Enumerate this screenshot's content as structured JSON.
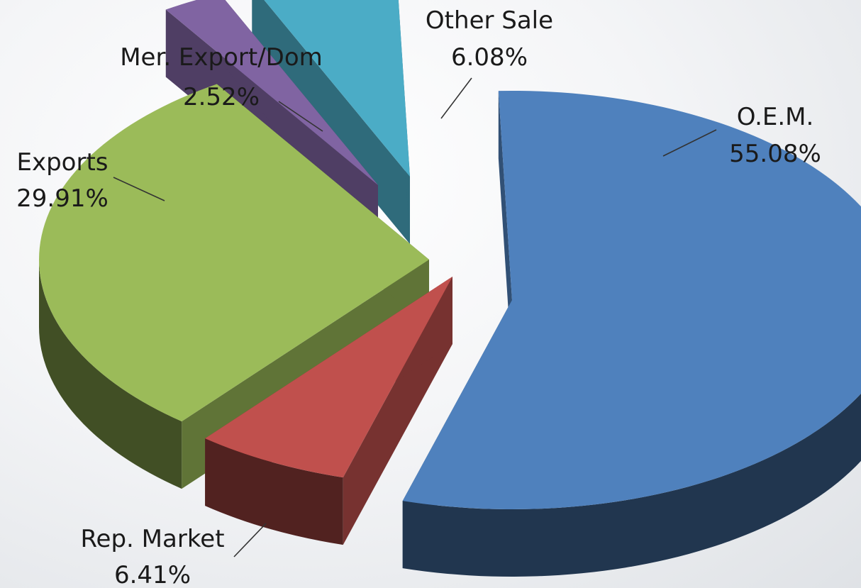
{
  "chart_data": {
    "type": "pie",
    "title": "",
    "three_d": true,
    "exploded": true,
    "slices": [
      {
        "name": "O.E.M.",
        "value": 55.08,
        "label": "55.08%",
        "color": "#4F81BD"
      },
      {
        "name": "Rep. Market",
        "value": 6.41,
        "label": "6.41%",
        "color": "#C0504D"
      },
      {
        "name": "Exports",
        "value": 29.91,
        "label": "29.91%",
        "color": "#9BBB59"
      },
      {
        "name": "Mer. Export/Dom",
        "value": 2.52,
        "label": "2.52%",
        "color": "#8064A2"
      },
      {
        "name": "Other Sale",
        "value": 6.08,
        "label": "6.08%",
        "color": "#4BACC6"
      }
    ]
  }
}
